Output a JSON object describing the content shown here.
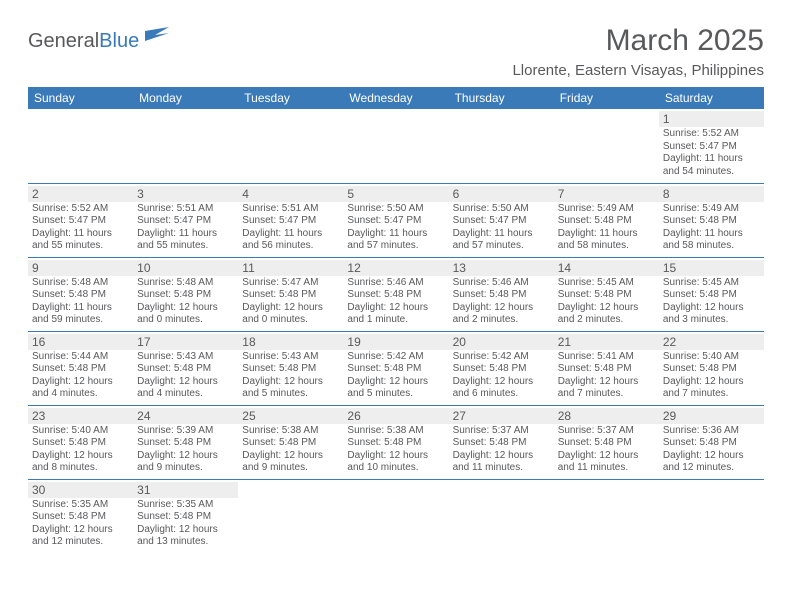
{
  "logo": {
    "text1": "General",
    "text2": "Blue"
  },
  "title": "March 2025",
  "subtitle": "Llorente, Eastern Visayas, Philippines",
  "colors": {
    "header_bg": "#3a7ab8",
    "header_text": "#ffffff",
    "daynum_bg": "#eeeeee",
    "text": "#58595b",
    "border": "#3a7ab8",
    "page_bg": "#ffffff"
  },
  "day_headers": [
    "Sunday",
    "Monday",
    "Tuesday",
    "Wednesday",
    "Thursday",
    "Friday",
    "Saturday"
  ],
  "weeks": [
    [
      null,
      null,
      null,
      null,
      null,
      null,
      {
        "n": "1",
        "sunrise": "5:52 AM",
        "sunset": "5:47 PM",
        "daylight": "11 hours and 54 minutes."
      }
    ],
    [
      {
        "n": "2",
        "sunrise": "5:52 AM",
        "sunset": "5:47 PM",
        "daylight": "11 hours and 55 minutes."
      },
      {
        "n": "3",
        "sunrise": "5:51 AM",
        "sunset": "5:47 PM",
        "daylight": "11 hours and 55 minutes."
      },
      {
        "n": "4",
        "sunrise": "5:51 AM",
        "sunset": "5:47 PM",
        "daylight": "11 hours and 56 minutes."
      },
      {
        "n": "5",
        "sunrise": "5:50 AM",
        "sunset": "5:47 PM",
        "daylight": "11 hours and 57 minutes."
      },
      {
        "n": "6",
        "sunrise": "5:50 AM",
        "sunset": "5:47 PM",
        "daylight": "11 hours and 57 minutes."
      },
      {
        "n": "7",
        "sunrise": "5:49 AM",
        "sunset": "5:48 PM",
        "daylight": "11 hours and 58 minutes."
      },
      {
        "n": "8",
        "sunrise": "5:49 AM",
        "sunset": "5:48 PM",
        "daylight": "11 hours and 58 minutes."
      }
    ],
    [
      {
        "n": "9",
        "sunrise": "5:48 AM",
        "sunset": "5:48 PM",
        "daylight": "11 hours and 59 minutes."
      },
      {
        "n": "10",
        "sunrise": "5:48 AM",
        "sunset": "5:48 PM",
        "daylight": "12 hours and 0 minutes."
      },
      {
        "n": "11",
        "sunrise": "5:47 AM",
        "sunset": "5:48 PM",
        "daylight": "12 hours and 0 minutes."
      },
      {
        "n": "12",
        "sunrise": "5:46 AM",
        "sunset": "5:48 PM",
        "daylight": "12 hours and 1 minute."
      },
      {
        "n": "13",
        "sunrise": "5:46 AM",
        "sunset": "5:48 PM",
        "daylight": "12 hours and 2 minutes."
      },
      {
        "n": "14",
        "sunrise": "5:45 AM",
        "sunset": "5:48 PM",
        "daylight": "12 hours and 2 minutes."
      },
      {
        "n": "15",
        "sunrise": "5:45 AM",
        "sunset": "5:48 PM",
        "daylight": "12 hours and 3 minutes."
      }
    ],
    [
      {
        "n": "16",
        "sunrise": "5:44 AM",
        "sunset": "5:48 PM",
        "daylight": "12 hours and 4 minutes."
      },
      {
        "n": "17",
        "sunrise": "5:43 AM",
        "sunset": "5:48 PM",
        "daylight": "12 hours and 4 minutes."
      },
      {
        "n": "18",
        "sunrise": "5:43 AM",
        "sunset": "5:48 PM",
        "daylight": "12 hours and 5 minutes."
      },
      {
        "n": "19",
        "sunrise": "5:42 AM",
        "sunset": "5:48 PM",
        "daylight": "12 hours and 5 minutes."
      },
      {
        "n": "20",
        "sunrise": "5:42 AM",
        "sunset": "5:48 PM",
        "daylight": "12 hours and 6 minutes."
      },
      {
        "n": "21",
        "sunrise": "5:41 AM",
        "sunset": "5:48 PM",
        "daylight": "12 hours and 7 minutes."
      },
      {
        "n": "22",
        "sunrise": "5:40 AM",
        "sunset": "5:48 PM",
        "daylight": "12 hours and 7 minutes."
      }
    ],
    [
      {
        "n": "23",
        "sunrise": "5:40 AM",
        "sunset": "5:48 PM",
        "daylight": "12 hours and 8 minutes."
      },
      {
        "n": "24",
        "sunrise": "5:39 AM",
        "sunset": "5:48 PM",
        "daylight": "12 hours and 9 minutes."
      },
      {
        "n": "25",
        "sunrise": "5:38 AM",
        "sunset": "5:48 PM",
        "daylight": "12 hours and 9 minutes."
      },
      {
        "n": "26",
        "sunrise": "5:38 AM",
        "sunset": "5:48 PM",
        "daylight": "12 hours and 10 minutes."
      },
      {
        "n": "27",
        "sunrise": "5:37 AM",
        "sunset": "5:48 PM",
        "daylight": "12 hours and 11 minutes."
      },
      {
        "n": "28",
        "sunrise": "5:37 AM",
        "sunset": "5:48 PM",
        "daylight": "12 hours and 11 minutes."
      },
      {
        "n": "29",
        "sunrise": "5:36 AM",
        "sunset": "5:48 PM",
        "daylight": "12 hours and 12 minutes."
      }
    ],
    [
      {
        "n": "30",
        "sunrise": "5:35 AM",
        "sunset": "5:48 PM",
        "daylight": "12 hours and 12 minutes."
      },
      {
        "n": "31",
        "sunrise": "5:35 AM",
        "sunset": "5:48 PM",
        "daylight": "12 hours and 13 minutes."
      },
      null,
      null,
      null,
      null,
      null
    ]
  ],
  "labels": {
    "sunrise": "Sunrise:",
    "sunset": "Sunset:",
    "daylight": "Daylight:"
  }
}
